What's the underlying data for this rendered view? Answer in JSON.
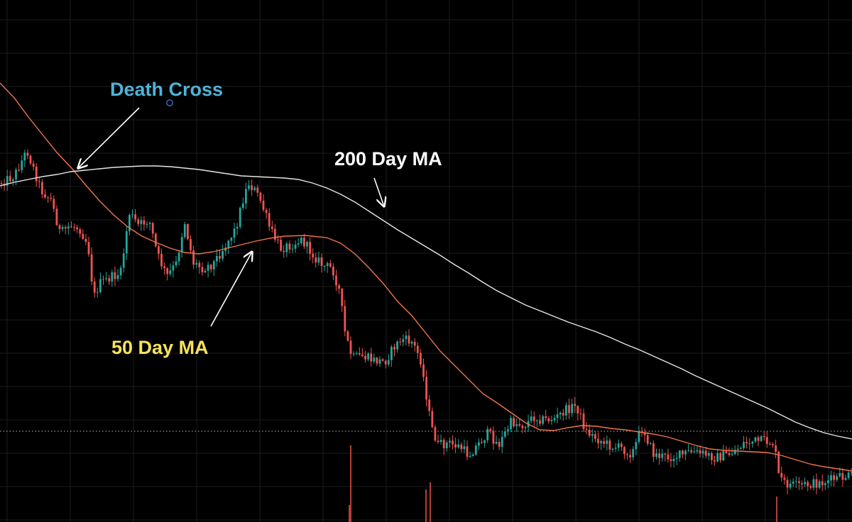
{
  "chart_data": {
    "type": "candlestick",
    "title": "",
    "xlabel": "",
    "ylabel": "",
    "grid": true,
    "last_price_line": true,
    "colors": {
      "background": "#000000",
      "up": "#26a69a",
      "down": "#ef5350",
      "ma50": "#f2734d",
      "ma200": "#e6e6e6",
      "grid": "#1c1c1c",
      "death_cross_label": "#4fb3d9",
      "ma200_label": "#ffffff",
      "ma50_label": "#f5e35a"
    },
    "series": [
      {
        "name": "50 Day MA"
      },
      {
        "name": "200 Day MA"
      }
    ],
    "annotations": {
      "death_cross": "Death Cross",
      "ma200": "200 Day MA",
      "ma50": "50 Day MA"
    }
  }
}
